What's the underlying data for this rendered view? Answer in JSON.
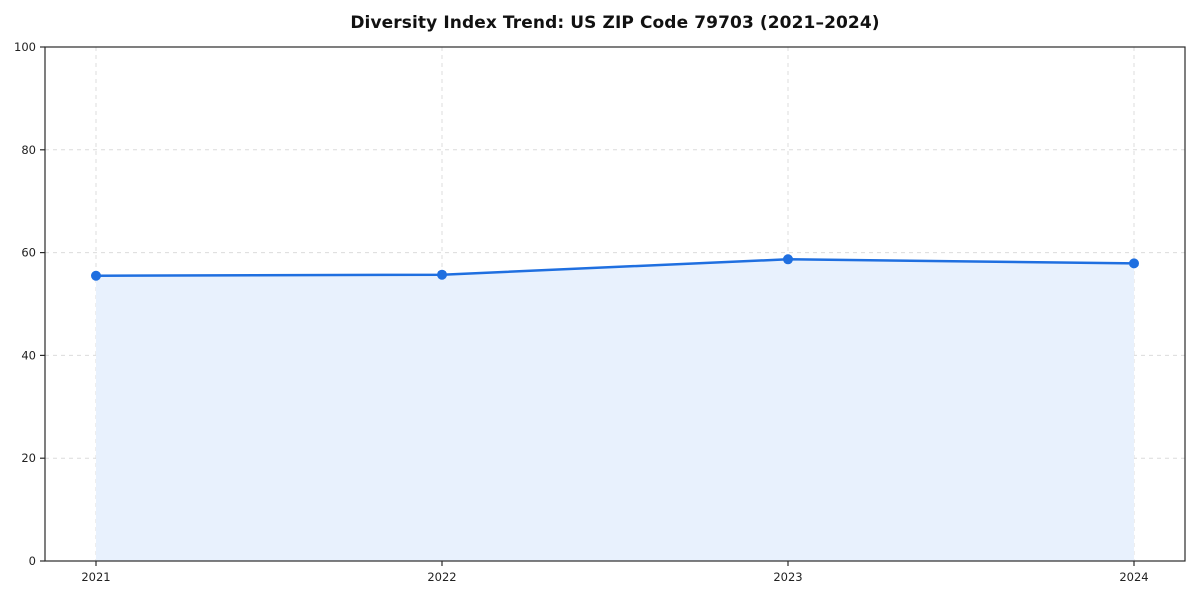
{
  "chart_data": {
    "type": "area",
    "title": "Diversity Index Trend: US ZIP Code 79703 (2021–2024)",
    "series_name": "Diversity Index",
    "x": [
      "2021",
      "2022",
      "2023",
      "2024"
    ],
    "values": [
      55.5,
      55.7,
      58.7,
      57.9
    ],
    "xlabel": "",
    "ylabel": "",
    "ylim": [
      0,
      100
    ],
    "yticks": [
      0,
      20,
      40,
      60,
      80,
      100
    ],
    "grid": true,
    "grid_style": "dashed",
    "legend": "none",
    "colors": {
      "line": "#1f6fe0",
      "marker": "#1f6fe0",
      "fill": "#e8f1fd",
      "axis": "#2a2a2a",
      "grid": "#dcdcdc",
      "tick_label": "#222222",
      "background": "#ffffff"
    }
  }
}
